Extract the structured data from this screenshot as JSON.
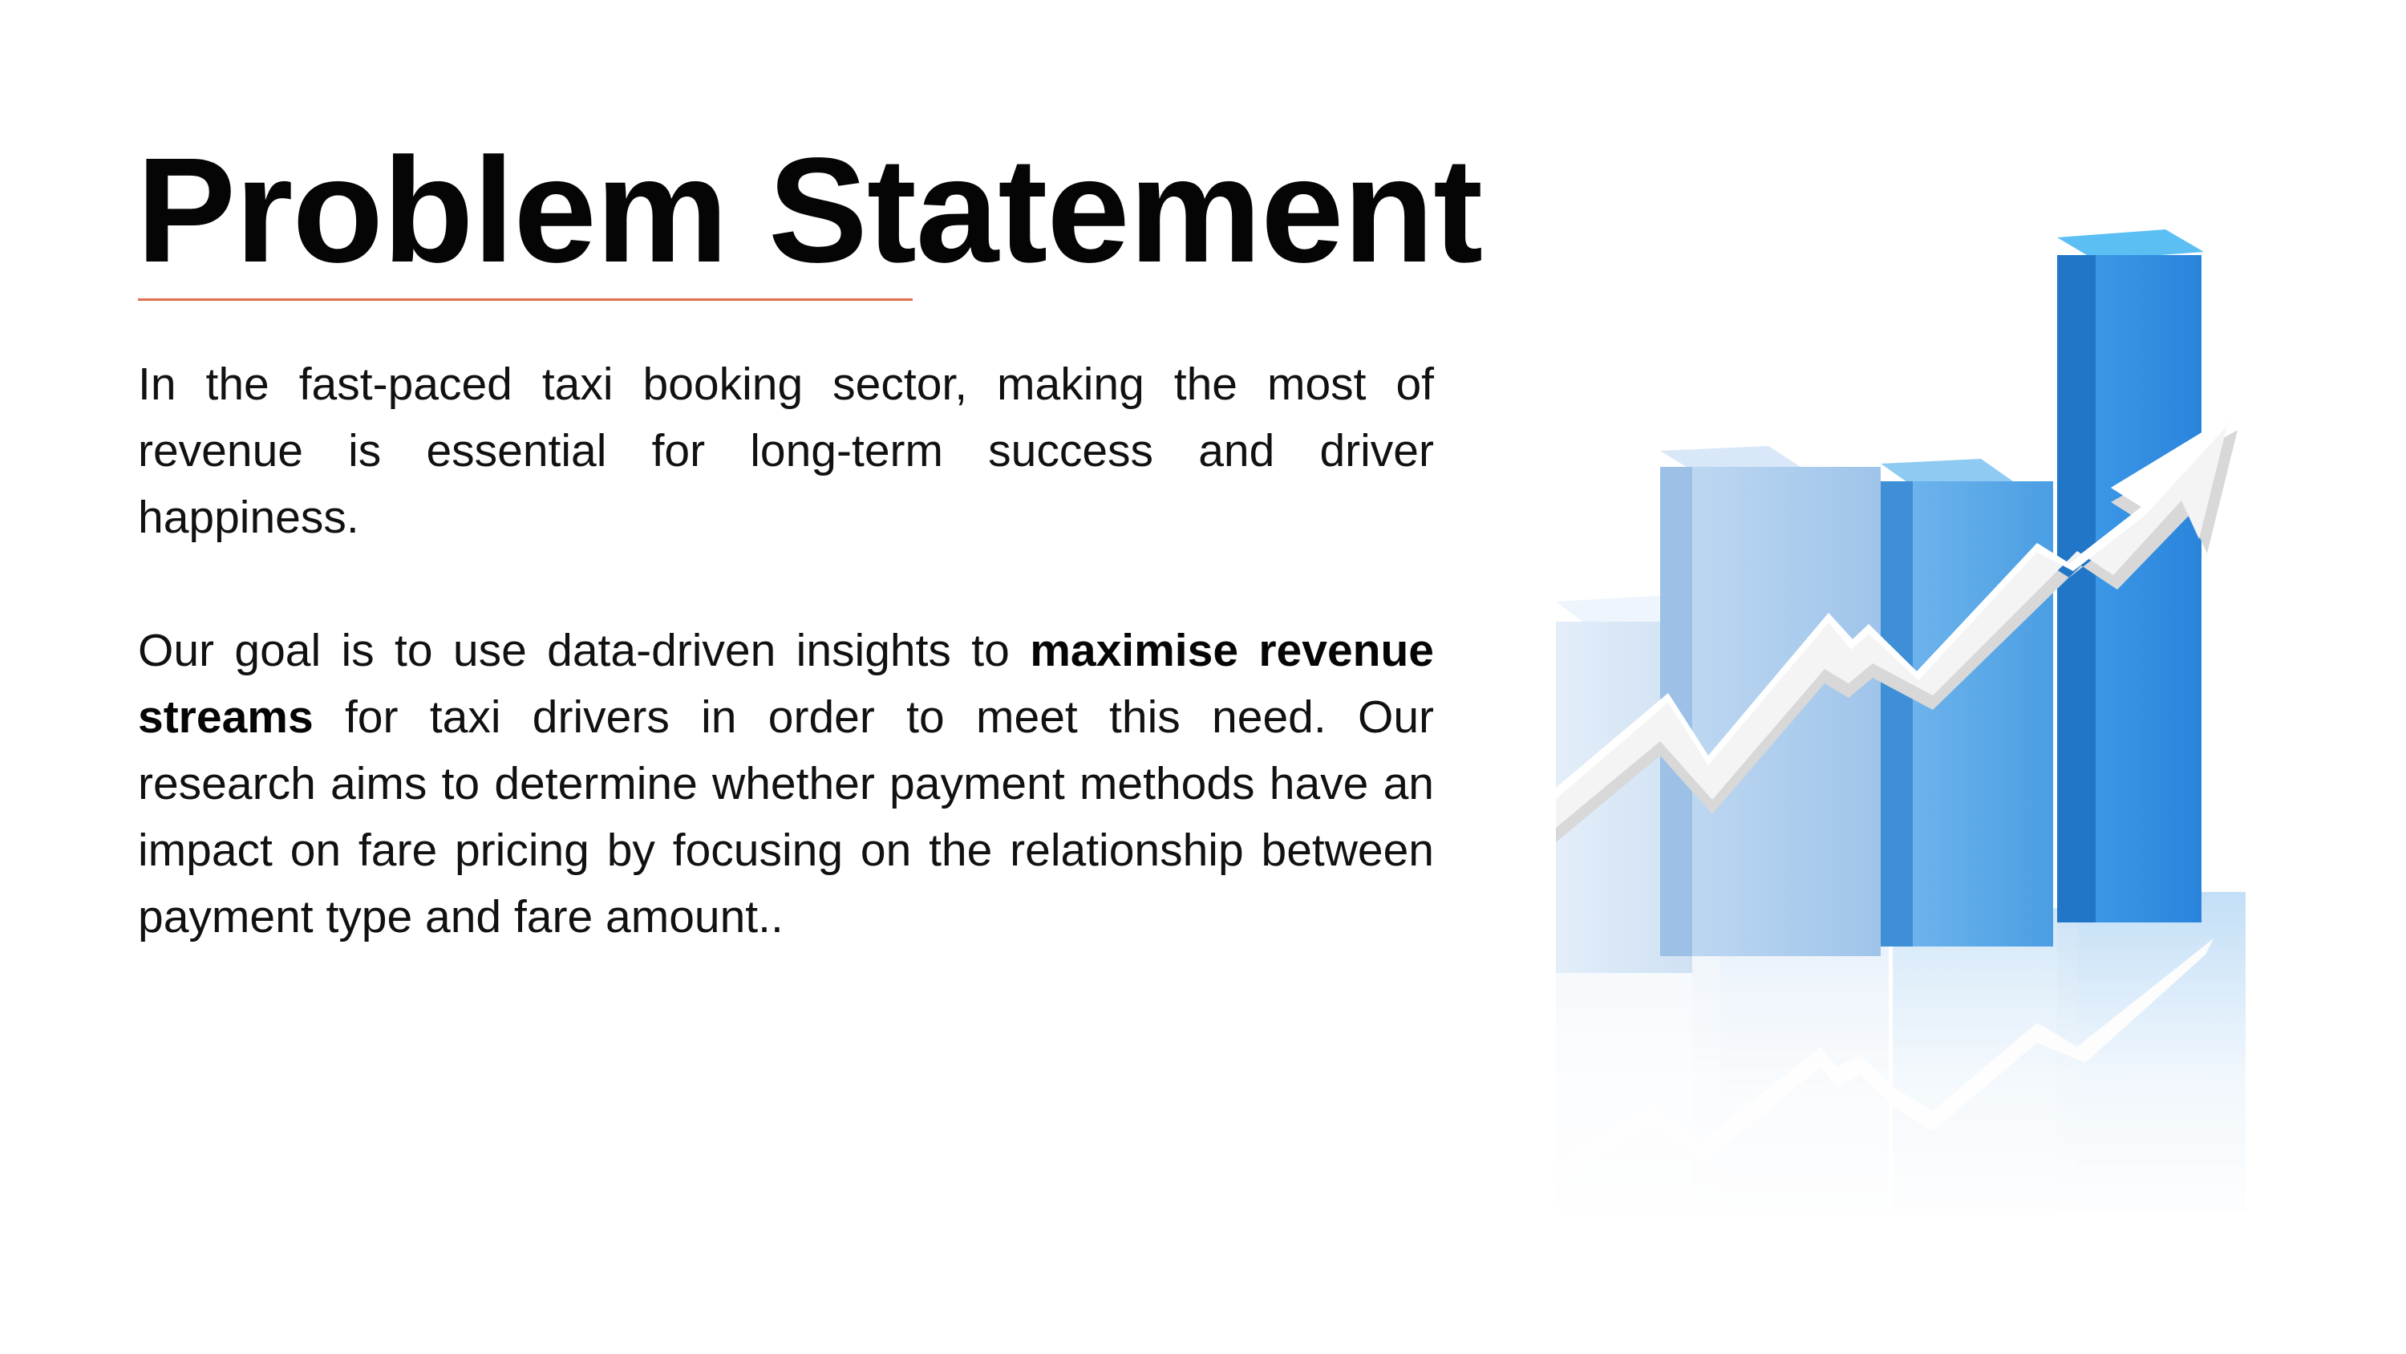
{
  "slide": {
    "title": "Problem Statement",
    "accent_color": "#e0714f",
    "paragraph_1": "In the fast-paced taxi booking sector, making the most of revenue is essential for long-term success and driver happiness.",
    "paragraph_2": {
      "lead": "Our goal is to use data-driven insights to ",
      "emphasis": "maximise revenue streams",
      "rest": " for taxi drivers in order to meet this need. Our research aims to determine whether payment methods have an impact on fare pricing by focusing on the relationship between payment type and fare amount.."
    }
  },
  "illustration": {
    "name": "rising-bar-chart-with-arrow",
    "bar_colors": [
      "#dbe9f7",
      "#a9cbed",
      "#5ba8e6",
      "#2f8be0"
    ],
    "arrow_color": "#f2f2f2"
  }
}
